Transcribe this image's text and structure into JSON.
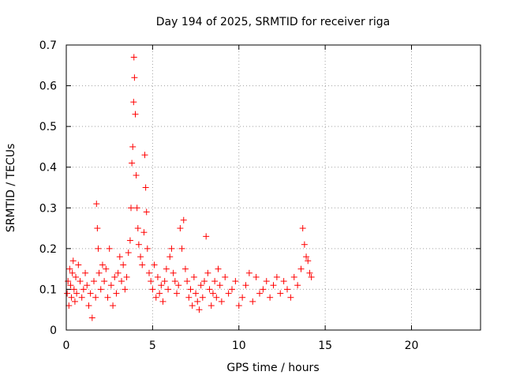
{
  "chart_data": {
    "type": "scatter",
    "title": "Day 194 of 2025, SRMTID for receiver riga",
    "xlabel": "GPS time / hours",
    "ylabel": "SRMTID / TECUs",
    "xlim": [
      0,
      24
    ],
    "ylim": [
      0,
      0.7
    ],
    "xticks": [
      0,
      5,
      10,
      15,
      20
    ],
    "yticks": [
      0,
      0.1,
      0.2,
      0.3,
      0.4,
      0.5,
      0.6,
      0.7
    ],
    "grid": true,
    "marker": "+",
    "colors": {
      "series": "#ff0000",
      "grid": "#a0a0a0",
      "axis": "#000000"
    },
    "series": [
      {
        "name": "SRMTID",
        "x": [
          0.05,
          0.1,
          0.15,
          0.2,
          0.25,
          0.3,
          0.35,
          0.4,
          0.45,
          0.5,
          0.55,
          0.6,
          0.7,
          0.8,
          0.9,
          1.0,
          1.1,
          1.2,
          1.3,
          1.4,
          1.5,
          1.6,
          1.7,
          1.75,
          1.8,
          1.85,
          1.9,
          2.0,
          2.1,
          2.2,
          2.3,
          2.4,
          2.5,
          2.6,
          2.7,
          2.8,
          2.9,
          3.0,
          3.1,
          3.2,
          3.3,
          3.4,
          3.5,
          3.6,
          3.7,
          3.75,
          3.8,
          3.85,
          3.9,
          3.92,
          3.95,
          4.0,
          4.05,
          4.1,
          4.15,
          4.2,
          4.3,
          4.4,
          4.5,
          4.55,
          4.6,
          4.65,
          4.7,
          4.8,
          4.9,
          5.0,
          5.1,
          5.2,
          5.3,
          5.4,
          5.5,
          5.6,
          5.7,
          5.8,
          5.9,
          6.0,
          6.1,
          6.2,
          6.3,
          6.4,
          6.5,
          6.6,
          6.7,
          6.8,
          6.9,
          7.0,
          7.1,
          7.2,
          7.3,
          7.4,
          7.5,
          7.6,
          7.7,
          7.8,
          7.9,
          8.0,
          8.1,
          8.2,
          8.3,
          8.4,
          8.5,
          8.6,
          8.7,
          8.8,
          8.9,
          9.0,
          9.2,
          9.4,
          9.6,
          9.8,
          10.0,
          10.2,
          10.4,
          10.6,
          10.8,
          11.0,
          11.2,
          11.4,
          11.6,
          11.8,
          12.0,
          12.2,
          12.4,
          12.6,
          12.8,
          13.0,
          13.2,
          13.4,
          13.6,
          13.7,
          13.8,
          13.9,
          14.0,
          14.1,
          14.2
        ],
        "y": [
          0.09,
          0.12,
          0.06,
          0.15,
          0.11,
          0.08,
          0.14,
          0.17,
          0.1,
          0.07,
          0.13,
          0.09,
          0.16,
          0.12,
          0.08,
          0.1,
          0.14,
          0.11,
          0.06,
          0.09,
          0.03,
          0.12,
          0.08,
          0.31,
          0.25,
          0.2,
          0.14,
          0.1,
          0.16,
          0.12,
          0.15,
          0.08,
          0.2,
          0.11,
          0.06,
          0.13,
          0.09,
          0.14,
          0.18,
          0.12,
          0.16,
          0.1,
          0.13,
          0.19,
          0.22,
          0.3,
          0.41,
          0.45,
          0.56,
          0.67,
          0.62,
          0.53,
          0.38,
          0.3,
          0.25,
          0.21,
          0.18,
          0.16,
          0.24,
          0.43,
          0.35,
          0.29,
          0.2,
          0.14,
          0.12,
          0.1,
          0.16,
          0.08,
          0.13,
          0.09,
          0.11,
          0.07,
          0.12,
          0.15,
          0.1,
          0.18,
          0.2,
          0.14,
          0.12,
          0.09,
          0.11,
          0.25,
          0.2,
          0.27,
          0.15,
          0.12,
          0.08,
          0.1,
          0.06,
          0.13,
          0.09,
          0.07,
          0.05,
          0.11,
          0.08,
          0.12,
          0.23,
          0.14,
          0.1,
          0.06,
          0.09,
          0.12,
          0.08,
          0.15,
          0.11,
          0.07,
          0.13,
          0.09,
          0.1,
          0.12,
          0.06,
          0.08,
          0.11,
          0.14,
          0.07,
          0.13,
          0.09,
          0.1,
          0.12,
          0.08,
          0.11,
          0.13,
          0.09,
          0.12,
          0.1,
          0.08,
          0.13,
          0.11,
          0.15,
          0.25,
          0.21,
          0.18,
          0.17,
          0.14,
          0.13
        ]
      }
    ]
  }
}
